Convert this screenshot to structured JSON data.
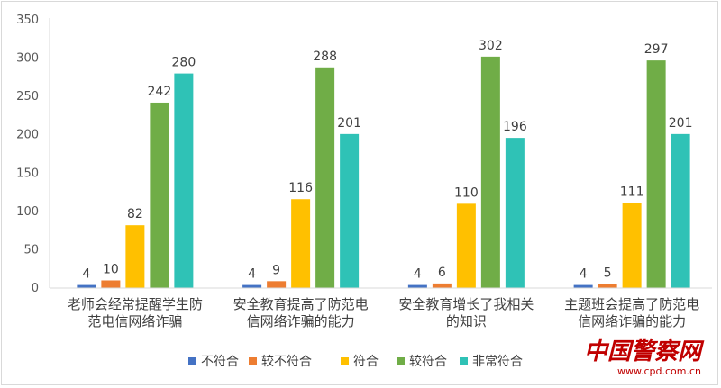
{
  "chart_data": {
    "type": "bar",
    "categories": [
      [
        "老师会经常提醒学生防",
        "范电信网络诈骗"
      ],
      [
        "安全教育提高了防范电",
        "信网络诈骗的能力"
      ],
      [
        "安全教育增长了我相关",
        "的知识"
      ],
      [
        "主题班会提高了防范电",
        "信网络诈骗的能力"
      ]
    ],
    "series": [
      {
        "name": "不符合",
        "color": "#4472c4",
        "values": [
          4,
          4,
          4,
          4
        ]
      },
      {
        "name": "较不符合",
        "color": "#ed7d31",
        "values": [
          10,
          9,
          6,
          5
        ]
      },
      {
        "name": "符合",
        "color": "#ffc000",
        "values": [
          82,
          116,
          110,
          111
        ]
      },
      {
        "name": "较符合",
        "color": "#70ad47",
        "values": [
          242,
          288,
          302,
          297
        ]
      },
      {
        "name": "非常符合",
        "color": "#2fc2b6",
        "values": [
          280,
          201,
          196,
          201
        ]
      }
    ],
    "yticks": [
      0,
      50,
      100,
      150,
      200,
      250,
      300,
      350
    ],
    "ylim": [
      0,
      350
    ],
    "grid": false,
    "legend_position": "bottom"
  },
  "watermark": {
    "brand": "中国警察网",
    "url": "www.cpd.com.cn"
  }
}
